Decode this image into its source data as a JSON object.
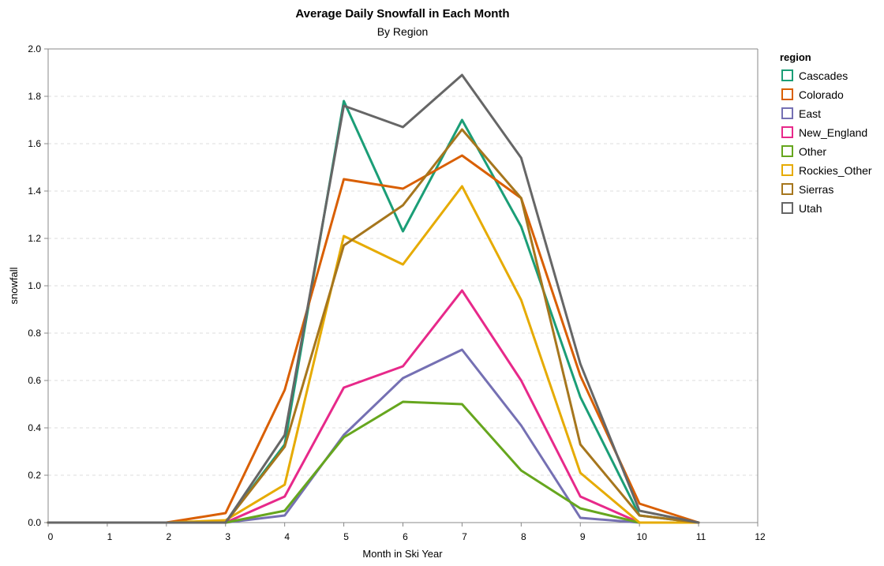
{
  "chart_data": {
    "type": "line",
    "title": "Average Daily Snowfall in Each Month",
    "subtitle": "By Region",
    "xlabel": "Month in Ski Year",
    "ylabel": "snowfall",
    "xlim": [
      0,
      12
    ],
    "ylim": [
      0,
      2.0
    ],
    "x_ticks": [
      0,
      1,
      2,
      3,
      4,
      5,
      6,
      7,
      8,
      9,
      10,
      11,
      12
    ],
    "y_ticks": [
      0.0,
      0.2,
      0.4,
      0.6,
      0.8,
      1.0,
      1.2,
      1.4,
      1.6,
      1.8,
      2.0
    ],
    "grid": "horizontal dashed",
    "legend": {
      "title": "region",
      "placement": "top-right"
    },
    "x": [
      0,
      1,
      2,
      3,
      4,
      5,
      6,
      7,
      8,
      9,
      10,
      11
    ],
    "series": [
      {
        "name": "Cascades",
        "color": "#1b9e77",
        "values": [
          0,
          0,
          0,
          0.0,
          0.33,
          1.78,
          1.23,
          1.7,
          1.25,
          0.53,
          0.03,
          0.0
        ]
      },
      {
        "name": "Colorado",
        "color": "#d95f02",
        "values": [
          0,
          0,
          0,
          0.04,
          0.56,
          1.45,
          1.41,
          1.55,
          1.37,
          0.62,
          0.08,
          0.0
        ]
      },
      {
        "name": "East",
        "color": "#7570b3",
        "values": [
          0,
          0,
          0,
          0.0,
          0.03,
          0.37,
          0.61,
          0.73,
          0.41,
          0.02,
          0.0,
          0.0
        ]
      },
      {
        "name": "New_England",
        "color": "#e7298a",
        "values": [
          0,
          0,
          0,
          0.0,
          0.11,
          0.57,
          0.66,
          0.98,
          0.6,
          0.11,
          0.0,
          0.0
        ]
      },
      {
        "name": "Other",
        "color": "#66a61e",
        "values": [
          0,
          0,
          0,
          0.0,
          0.05,
          0.36,
          0.51,
          0.5,
          0.22,
          0.06,
          0.0,
          0.0
        ]
      },
      {
        "name": "Rockies_Other",
        "color": "#e6ab02",
        "values": [
          0,
          0,
          0,
          0.01,
          0.16,
          1.21,
          1.09,
          1.42,
          0.94,
          0.21,
          0.0,
          0.0
        ]
      },
      {
        "name": "Sierras",
        "color": "#a6761d",
        "values": [
          0,
          0,
          0,
          0.0,
          0.32,
          1.17,
          1.34,
          1.66,
          1.37,
          0.33,
          0.03,
          0.0
        ]
      },
      {
        "name": "Utah",
        "color": "#666666",
        "values": [
          0,
          0,
          0,
          0.0,
          0.37,
          1.76,
          1.67,
          1.89,
          1.54,
          0.67,
          0.05,
          0.0
        ]
      }
    ]
  }
}
